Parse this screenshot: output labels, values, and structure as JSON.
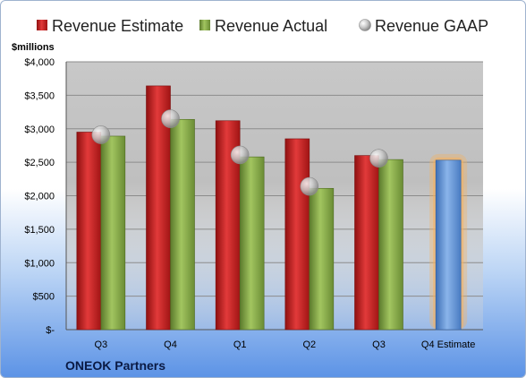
{
  "chart_data": {
    "type": "bar",
    "categories": [
      "Q3",
      "Q4",
      "Q1",
      "Q2",
      "Q3",
      "Q4 Estimate"
    ],
    "series": [
      {
        "name": "Revenue Estimate",
        "values": [
          2950,
          3640,
          3120,
          2850,
          2600,
          null
        ],
        "color": "#d42a2a"
      },
      {
        "name": "Revenue Actual",
        "values": [
          2890,
          3140,
          2580,
          2110,
          2540,
          null
        ],
        "color": "#8cb04c"
      },
      {
        "name": "Revenue GAAP",
        "marker": "sphere",
        "values": [
          2910,
          3150,
          2610,
          2140,
          2560,
          null
        ],
        "color": "#c8c8c8"
      }
    ],
    "estimate_bar": {
      "category": "Q4 Estimate",
      "value": 2530,
      "color": "#6b9fdc",
      "glow_color": "#f5b15c"
    },
    "unit_label": "$millions",
    "y_ticks": [
      "$-",
      "$500",
      "$1,000",
      "$1,500",
      "$2,000",
      "$2,500",
      "$3,000",
      "$3,500",
      "$4,000"
    ],
    "ylim": [
      0,
      4000
    ],
    "y_tick_step": 500,
    "grid": true,
    "legend_position": "top",
    "footer": "ONEOK Partners"
  }
}
